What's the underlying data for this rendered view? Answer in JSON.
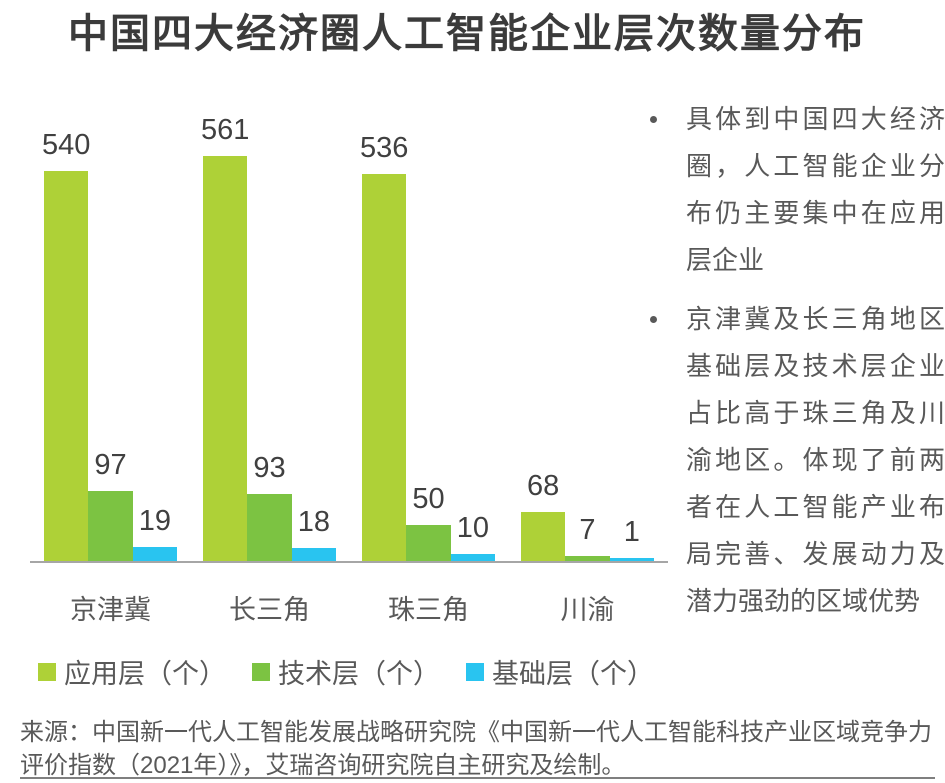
{
  "title": "中国四大经济圈人工智能企业层次数量分布",
  "chart_data": {
    "type": "bar",
    "title": "中国四大经济圈人工智能企业层次数量分布",
    "categories": [
      "京津冀",
      "长三角",
      "珠三角",
      "川渝"
    ],
    "series": [
      {
        "name": "应用层（个）",
        "color": "#AED137",
        "values": [
          540,
          561,
          536,
          68
        ]
      },
      {
        "name": "技术层（个）",
        "color": "#7CC342",
        "values": [
          97,
          93,
          50,
          7
        ]
      },
      {
        "name": "基础层（个）",
        "color": "#29C4F0",
        "values": [
          19,
          18,
          10,
          1
        ]
      }
    ],
    "xlabel": "",
    "ylabel": "",
    "ylim": [
      0,
      561
    ],
    "grid": false,
    "data_labels": true,
    "legend_position": "bottom"
  },
  "annotations": {
    "bullets": [
      "具体到中国四大经济圈，人工智能企业分布仍主要集中在应用层企业",
      "京津冀及长三角地区基础层及技术层企业占比高于珠三角及川渝地区。体现了前两者在人工智能产业布局完善、发展动力及潜力强劲的区域优势"
    ]
  },
  "source": "来源：中国新一代人工智能发展战略研究院《中国新一代人工智能科技产业区域竞争力评价指数（2021年）》，艾瑞咨询研究院自主研究及绘制。",
  "colors": {
    "title_text": "#3B3B3B",
    "value_label": "#404040",
    "body_text": "#595959",
    "axis_line": "#A6A6A6",
    "footer_line": "#7F7F7F"
  }
}
